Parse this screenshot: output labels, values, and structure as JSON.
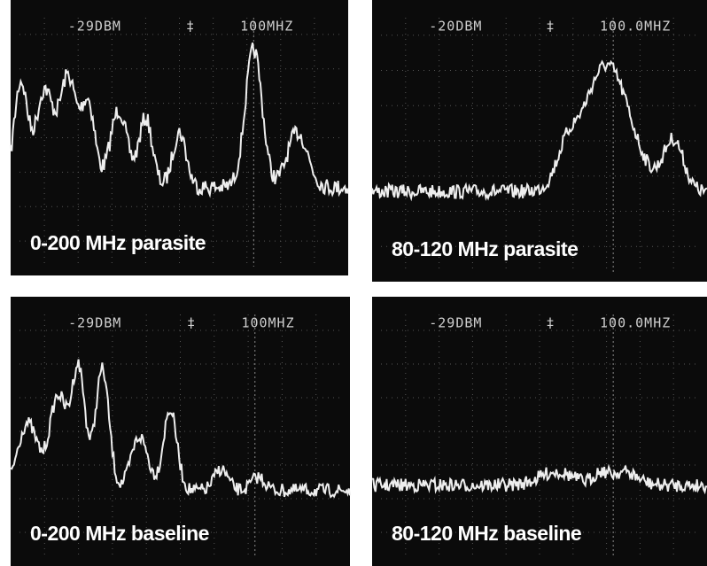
{
  "panels": [
    {
      "header_left": "-29DBM",
      "header_right": "100MHZ",
      "caption": "0-200 MHz parasite"
    },
    {
      "header_left": "-20DBM",
      "header_right": "100.0MHZ",
      "caption": "80-120 MHz parasite"
    },
    {
      "header_left": "-29DBM",
      "header_right": "100MHZ",
      "caption": "0-200 MHz baseline"
    },
    {
      "header_left": "-29DBM",
      "header_right": "100.0MHZ",
      "caption": "80-120 MHz baseline"
    }
  ]
}
